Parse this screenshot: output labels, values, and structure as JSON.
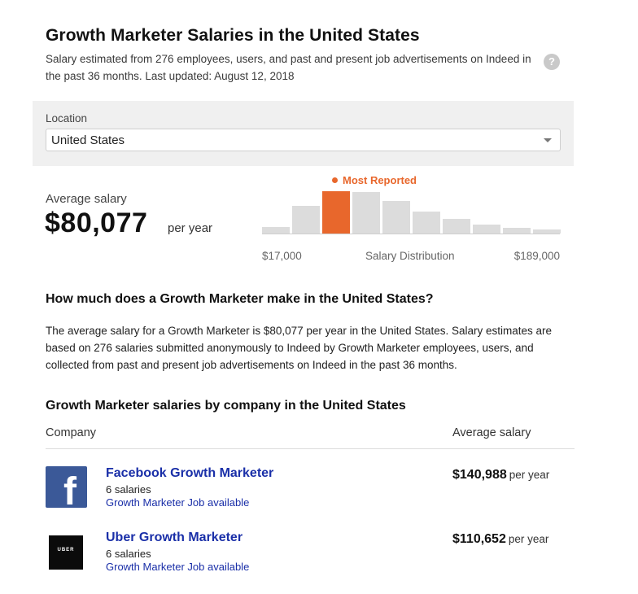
{
  "header": {
    "title": "Growth Marketer Salaries in the United States",
    "subtitle": "Salary estimated from 276 employees, users, and past and present job advertisements on Indeed in the past 36 months. Last updated: August 12, 2018",
    "help_icon": "?"
  },
  "location": {
    "label": "Location",
    "value": "United States"
  },
  "average": {
    "label": "Average salary",
    "value": "$80,077",
    "unit": "per year"
  },
  "distribution": {
    "most_reported_label": "Most Reported",
    "min_label": "$17,000",
    "caption": "Salary Distribution",
    "max_label": "$189,000",
    "peak_color": "#e8672c",
    "bar_color": "#dcdcdc",
    "bar_levels": [
      0.15,
      0.64,
      0.98,
      0.96,
      0.75,
      0.51,
      0.34,
      0.21,
      0.13,
      0.09
    ],
    "peak_index": 2
  },
  "how_much": {
    "heading": "How much does a Growth Marketer make in the United States?",
    "text": "The average salary for a Growth Marketer is $80,077 per year in the United States. Salary estimates are based on 276 salaries submitted anonymously to Indeed by Growth Marketer employees, users, and collected from past and present job advertisements on Indeed in the past 36 months."
  },
  "by_company": {
    "heading": "Growth Marketer salaries by company in the United States",
    "col_company": "Company",
    "col_salary": "Average salary",
    "rows": [
      {
        "logo": "facebook-logo",
        "logo_text": "f",
        "name": "Facebook Growth Marketer",
        "count": "6 salaries",
        "jobs": "Growth Marketer Job available",
        "salary": "$140,988",
        "unit": "per year"
      },
      {
        "logo": "uber-logo",
        "logo_text": "UBER",
        "name": "Uber Growth Marketer",
        "count": "6 salaries",
        "jobs": "Growth Marketer Job available",
        "salary": "$110,652",
        "unit": "per year"
      }
    ]
  }
}
